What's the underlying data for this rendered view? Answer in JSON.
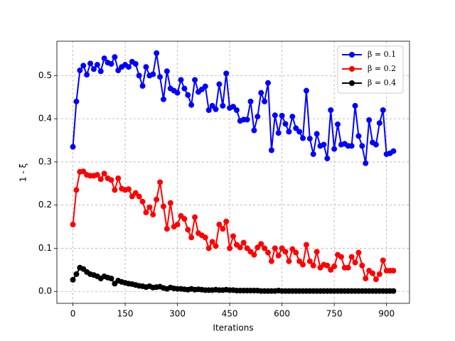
{
  "chart_data": {
    "type": "line",
    "xlabel": "Iterations",
    "ylabel": "1 - ξ",
    "x": [
      0,
      10,
      20,
      30,
      40,
      50,
      60,
      70,
      80,
      90,
      100,
      110,
      120,
      130,
      140,
      150,
      160,
      170,
      180,
      190,
      200,
      210,
      220,
      230,
      240,
      250,
      260,
      270,
      280,
      290,
      300,
      310,
      320,
      330,
      340,
      350,
      360,
      370,
      380,
      390,
      400,
      410,
      420,
      430,
      440,
      450,
      460,
      470,
      480,
      490,
      500,
      510,
      520,
      530,
      540,
      550,
      560,
      570,
      580,
      590,
      600,
      610,
      620,
      630,
      640,
      650,
      660,
      670,
      680,
      690,
      700,
      710,
      720,
      730,
      740,
      750,
      760,
      770,
      780,
      790,
      800,
      810,
      820,
      830,
      840,
      850,
      860,
      870,
      880,
      890,
      900,
      910,
      920
    ],
    "series": [
      {
        "name": "β = 0.1",
        "color": "#0000ff",
        "values": [
          0.335,
          0.44,
          0.512,
          0.523,
          0.502,
          0.528,
          0.515,
          0.525,
          0.51,
          0.54,
          0.53,
          0.527,
          0.543,
          0.512,
          0.52,
          0.525,
          0.52,
          0.532,
          0.527,
          0.5,
          0.476,
          0.52,
          0.5,
          0.503,
          0.552,
          0.497,
          0.445,
          0.51,
          0.47,
          0.465,
          0.46,
          0.49,
          0.47,
          0.455,
          0.432,
          0.49,
          0.462,
          0.468,
          0.475,
          0.42,
          0.43,
          0.422,
          0.48,
          0.43,
          0.505,
          0.425,
          0.428,
          0.42,
          0.395,
          0.398,
          0.398,
          0.44,
          0.373,
          0.405,
          0.46,
          0.44,
          0.483,
          0.327,
          0.408,
          0.367,
          0.407,
          0.388,
          0.37,
          0.405,
          0.378,
          0.37,
          0.355,
          0.465,
          0.354,
          0.318,
          0.365,
          0.337,
          0.34,
          0.308,
          0.42,
          0.33,
          0.387,
          0.34,
          0.342,
          0.337,
          0.337,
          0.43,
          0.36,
          0.337,
          0.297,
          0.397,
          0.345,
          0.34,
          0.39,
          0.42,
          0.318,
          0.32,
          0.325
        ]
      },
      {
        "name": "β = 0.2",
        "color": "#ff0000",
        "values": [
          0.155,
          0.235,
          0.277,
          0.278,
          0.27,
          0.268,
          0.268,
          0.27,
          0.26,
          0.273,
          0.262,
          0.258,
          0.235,
          0.262,
          0.238,
          0.235,
          0.237,
          0.22,
          0.228,
          0.22,
          0.208,
          0.183,
          0.195,
          0.178,
          0.213,
          0.253,
          0.197,
          0.145,
          0.205,
          0.15,
          0.155,
          0.175,
          0.168,
          0.143,
          0.125,
          0.172,
          0.135,
          0.13,
          0.125,
          0.1,
          0.115,
          0.105,
          0.155,
          0.145,
          0.162,
          0.1,
          0.128,
          0.108,
          0.102,
          0.113,
          0.1,
          0.092,
          0.085,
          0.102,
          0.11,
          0.1,
          0.09,
          0.07,
          0.1,
          0.083,
          0.1,
          0.092,
          0.07,
          0.098,
          0.09,
          0.07,
          0.062,
          0.108,
          0.07,
          0.06,
          0.092,
          0.055,
          0.062,
          0.06,
          0.05,
          0.058,
          0.085,
          0.08,
          0.055,
          0.055,
          0.08,
          0.067,
          0.09,
          0.06,
          0.03,
          0.048,
          0.042,
          0.028,
          0.04,
          0.072,
          0.048,
          0.048,
          0.048
        ]
      },
      {
        "name": "β = 0.4",
        "color": "#000000",
        "values": [
          0.027,
          0.04,
          0.055,
          0.052,
          0.045,
          0.04,
          0.038,
          0.035,
          0.03,
          0.035,
          0.032,
          0.03,
          0.018,
          0.025,
          0.022,
          0.02,
          0.018,
          0.017,
          0.015,
          0.013,
          0.012,
          0.01,
          0.012,
          0.009,
          0.01,
          0.011,
          0.008,
          0.006,
          0.009,
          0.007,
          0.006,
          0.006,
          0.005,
          0.004,
          0.006,
          0.004,
          0.005,
          0.004,
          0.003,
          0.003,
          0.003,
          0.004,
          0.003,
          0.003,
          0.004,
          0.003,
          0.003,
          0.002,
          0.002,
          0.002,
          0.002,
          0.002,
          0.002,
          0.002,
          0.001,
          0.001,
          0.001,
          0.001,
          0.001,
          0.002,
          0.001,
          0.001,
          0.001,
          0.001,
          0.001,
          0.001,
          0.001,
          0.001,
          0.001,
          0.001,
          0.001,
          0.001,
          0.001,
          0.001,
          0.001,
          0.001,
          0.001,
          0.001,
          0.001,
          0.001,
          0.001,
          0.001,
          0.001,
          0.001,
          0.001,
          0.001,
          0.001,
          0.001,
          0.001,
          0.001,
          0.001,
          0.001,
          0.001
        ]
      }
    ],
    "xlim": [
      -46,
      966
    ],
    "xticks": [
      0,
      150,
      300,
      450,
      600,
      750,
      900
    ],
    "ylim": [
      -0.0276,
      0.5796
    ],
    "yticks": [
      {
        "value": 0,
        "label": "0.0"
      },
      0.1,
      0.2,
      0.3,
      0.4,
      0.5
    ],
    "grid": true,
    "legend": "upper right"
  }
}
